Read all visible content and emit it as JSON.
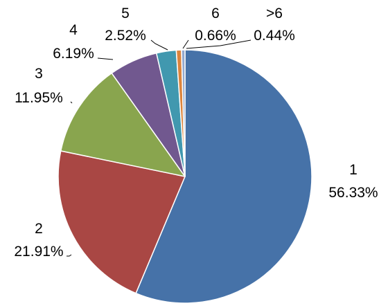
{
  "chart_data": {
    "type": "pie",
    "title": "",
    "categories": [
      "1",
      "2",
      "3",
      "4",
      "5",
      "6",
      ">6"
    ],
    "values": [
      56.33,
      21.91,
      11.95,
      6.19,
      2.52,
      0.66,
      0.44
    ],
    "value_labels": [
      "56.33%",
      "21.91%",
      "11.95%",
      "6.19%",
      "2.52%",
      "0.66%",
      "0.44%"
    ],
    "colors": [
      "#4672A8",
      "#A94744",
      "#89A54E",
      "#71588F",
      "#4198AF",
      "#DB843D",
      "#93A9CF"
    ],
    "start_angle": "12 o'clock",
    "direction": "clockwise",
    "legend": "none",
    "labels": "category name and percentage beside each slice"
  }
}
